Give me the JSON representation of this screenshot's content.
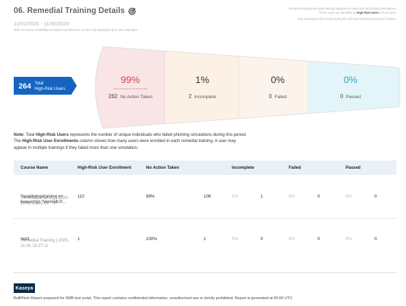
{
  "header": {
    "title": "06. Remedial Training Details",
    "title_icon": "target-icon",
    "date_range": "11/01/2025 - 11/30/2025",
    "subnote": "Note: To ensure readability and system performance, we are only displaying up to 150 campaigns",
    "right_line1": "Remedial trainings are automatically assigned to users who fail phishing simulations.",
    "right_line2_prefix": "These users are identified as ",
    "right_line2_bold": "High-Risk Users",
    "right_line2_suffix": " in this report.",
    "right_line3": "Only campaigns with activity during the selected reporting period are included."
  },
  "funnel": {
    "total_count": "264",
    "total_label_line1": "Total",
    "total_label_line2": "High-Risk Users",
    "stages": [
      {
        "pct": "99%",
        "count": "262",
        "label": "No Action Taken",
        "color": "#c8464f",
        "bg": "#f9e5e6"
      },
      {
        "pct": "1%",
        "count": "2",
        "label": "Incomplete",
        "color": "#333333",
        "bg": "#fdf1e6"
      },
      {
        "pct": "0%",
        "count": "0",
        "label": "Failed",
        "color": "#333333",
        "bg": "#fcf3ec"
      },
      {
        "pct": "0%",
        "count": "0",
        "label": "Passed",
        "color": "#2aa8b8",
        "bg": "#e4f5fa"
      }
    ]
  },
  "note": {
    "p1": "Note:",
    "p2": " Total ",
    "p3": "High-Risk Users",
    "p4": " represents the number of unique individuals who failed phishing simulations during this period. The ",
    "p5": "High-Risk User Enrollments",
    "p6": " column shows how many users were enrolled in each remedial training. A user may appear in multiple trainings if they failed more than one simulation."
  },
  "table": {
    "headers": {
      "course": "Course Name",
      "enroll": "High-Risk User Enrollment",
      "noaction": "No Action Taken",
      "incomplete": "Incomplete",
      "failed": "Failed",
      "passed": "Passed"
    },
    "rows": [
      {
        "name": "Beveiligingstraining en bewustzijn \"Vermijdt P...",
        "meta": "Remedial Training | 2025-11-01 13:42:19",
        "enroll": "110",
        "noaction_pct": "99%",
        "noaction_n": "109",
        "incomplete_pct": "1%",
        "incomplete_n": "1",
        "failed_pct": "0%",
        "failed_n": "0",
        "passed_pct": "0%",
        "passed_n": "0"
      },
      {
        "name": "test1",
        "meta": "Remedial Training | 2025-11-01 15:27:11",
        "enroll": "1",
        "noaction_pct": "100%",
        "noaction_n": "1",
        "incomplete_pct": "0%",
        "incomplete_n": "0",
        "failed_pct": "0%",
        "failed_n": "0",
        "passed_pct": "0%",
        "passed_n": "0"
      }
    ]
  },
  "footer": {
    "logo": "Kaseya",
    "text": "BullPhish Report prepared for SMB test script. This report contains confidential information, unauthorized use is strictly prohibited. Report is generated at 00:00 UTC."
  },
  "colors": {
    "brand_blue": "#1565c0",
    "accent_red": "#c8464f",
    "accent_teal": "#2aa8b8"
  }
}
